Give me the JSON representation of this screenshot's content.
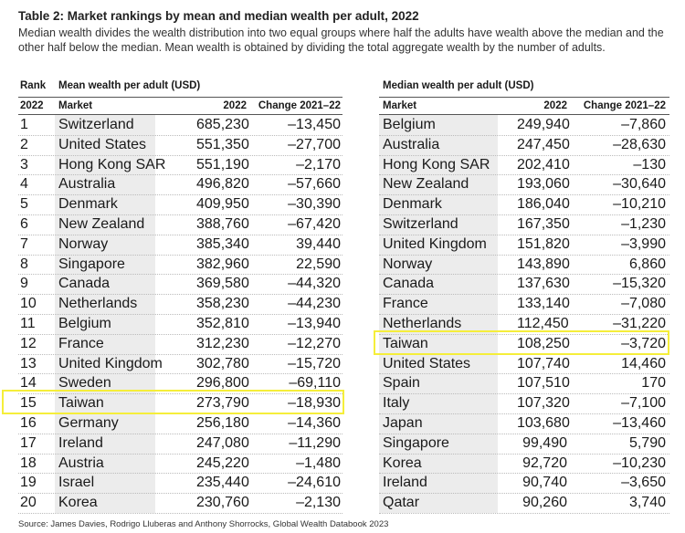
{
  "title": "Table 2: Market rankings by mean and median wealth per adult, 2022",
  "description": "Median wealth divides the wealth distribution into two equal groups where half the adults have wealth above the median and the other half below the median. Mean wealth is obtained by dividing the total aggregate wealth by the number of adults.",
  "left_table": {
    "rank_header_top": "Rank",
    "rank_header_bottom": "2022",
    "group_header": "Mean wealth per adult (USD)",
    "col_market": "Market",
    "col_year": "2022",
    "col_change": "Change 2021–22",
    "rows": [
      {
        "rank": "1",
        "market": "Switzerland",
        "value": "685,230",
        "change": "–13,450"
      },
      {
        "rank": "2",
        "market": "United States",
        "value": "551,350",
        "change": "–27,700"
      },
      {
        "rank": "3",
        "market": "Hong Kong SAR",
        "value": "551,190",
        "change": "–2,170"
      },
      {
        "rank": "4",
        "market": "Australia",
        "value": "496,820",
        "change": "–57,660"
      },
      {
        "rank": "5",
        "market": "Denmark",
        "value": "409,950",
        "change": "–30,390"
      },
      {
        "rank": "6",
        "market": "New Zealand",
        "value": "388,760",
        "change": "–67,420"
      },
      {
        "rank": "7",
        "market": "Norway",
        "value": "385,340",
        "change": "39,440"
      },
      {
        "rank": "8",
        "market": "Singapore",
        "value": "382,960",
        "change": "22,590"
      },
      {
        "rank": "9",
        "market": "Canada",
        "value": "369,580",
        "change": "–44,320"
      },
      {
        "rank": "10",
        "market": "Netherlands",
        "value": "358,230",
        "change": "–44,230"
      },
      {
        "rank": "11",
        "market": "Belgium",
        "value": "352,810",
        "change": "–13,940"
      },
      {
        "rank": "12",
        "market": "France",
        "value": "312,230",
        "change": "–12,270"
      },
      {
        "rank": "13",
        "market": "United Kingdom",
        "value": "302,780",
        "change": "–15,720"
      },
      {
        "rank": "14",
        "market": "Sweden",
        "value": "296,800",
        "change": "–69,110"
      },
      {
        "rank": "15",
        "market": "Taiwan",
        "value": "273,790",
        "change": "–18,930"
      },
      {
        "rank": "16",
        "market": "Germany",
        "value": "256,180",
        "change": "–14,360"
      },
      {
        "rank": "17",
        "market": "Ireland",
        "value": "247,080",
        "change": "–11,290"
      },
      {
        "rank": "18",
        "market": "Austria",
        "value": "245,220",
        "change": "–1,480"
      },
      {
        "rank": "19",
        "market": "Israel",
        "value": "235,440",
        "change": "–24,610"
      },
      {
        "rank": "20",
        "market": "Korea",
        "value": "230,760",
        "change": "–2,130"
      }
    ]
  },
  "right_table": {
    "group_header": "Median wealth per adult (USD)",
    "col_market": "Market",
    "col_year": "2022",
    "col_change": "Change 2021–22",
    "rows": [
      {
        "market": "Belgium",
        "value": "249,940",
        "change": "–7,860"
      },
      {
        "market": "Australia",
        "value": "247,450",
        "change": "–28,630"
      },
      {
        "market": "Hong Kong SAR",
        "value": "202,410",
        "change": "–130"
      },
      {
        "market": "New Zealand",
        "value": "193,060",
        "change": "–30,640"
      },
      {
        "market": "Denmark",
        "value": "186,040",
        "change": "–10,210"
      },
      {
        "market": "Switzerland",
        "value": "167,350",
        "change": "–1,230"
      },
      {
        "market": "United Kingdom",
        "value": "151,820",
        "change": "–3,990"
      },
      {
        "market": "Norway",
        "value": "143,890",
        "change": "6,860"
      },
      {
        "market": "Canada",
        "value": "137,630",
        "change": "–15,320"
      },
      {
        "market": "France",
        "value": "133,140",
        "change": "–7,080"
      },
      {
        "market": "Netherlands",
        "value": "112,450",
        "change": "–31,220"
      },
      {
        "market": "Taiwan",
        "value": "108,250",
        "change": "–3,720"
      },
      {
        "market": "United States",
        "value": "107,740",
        "change": "14,460"
      },
      {
        "market": "Spain",
        "value": "107,510",
        "change": "170"
      },
      {
        "market": "Italy",
        "value": "107,320",
        "change": "–7,100"
      },
      {
        "market": "Japan",
        "value": "103,680",
        "change": "–13,460"
      },
      {
        "market": "Singapore",
        "value": "99,490",
        "change": "5,790"
      },
      {
        "market": "Korea",
        "value": "92,720",
        "change": "–10,230"
      },
      {
        "market": "Ireland",
        "value": "90,740",
        "change": "–3,650"
      },
      {
        "market": "Qatar",
        "value": "90,260",
        "change": "3,740"
      }
    ]
  },
  "highlight_color": "#f5ee3a",
  "shade_color": "#ececec",
  "source": "Source: James Davies, Rodrigo Lluberas and Anthony Shorrocks, Global Wealth Databook 2023"
}
